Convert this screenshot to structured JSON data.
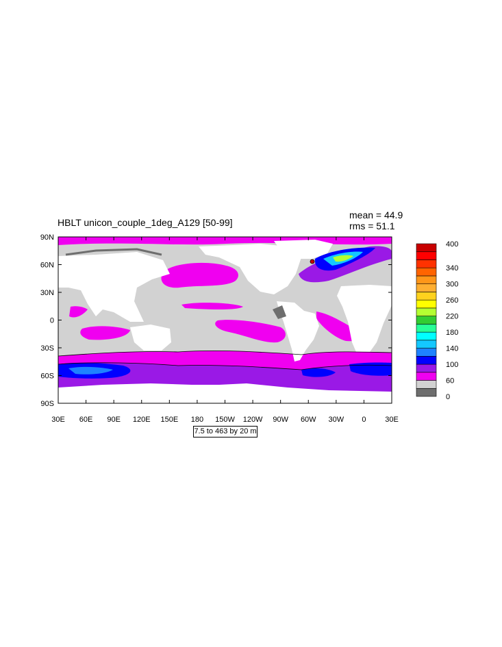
{
  "title": "HBLT unicon_couple_1deg_A129 [50-99]",
  "stats": {
    "mean": "mean = 44.9",
    "rms": "rms = 51.1"
  },
  "contour_info": "7.5 to 463 by 20 m",
  "lat_labels": [
    "90N",
    "60N",
    "30N",
    "0",
    "30S",
    "60S",
    "90S"
  ],
  "lon_labels": [
    "30E",
    "60E",
    "90E",
    "120E",
    "150E",
    "180",
    "150W",
    "120W",
    "90W",
    "60W",
    "30W",
    "0",
    "30E"
  ],
  "colorbar": {
    "colors": [
      "#6e6e6e",
      "#d2d2d2",
      "#f000f0",
      "#9a19e6",
      "#0000ff",
      "#1e82ff",
      "#14c8ff",
      "#00ffff",
      "#28ff96",
      "#32cd32",
      "#b4ff32",
      "#ffff00",
      "#ffd21e",
      "#ffaf32",
      "#ff9619",
      "#ff6400",
      "#ff3200",
      "#ff0000",
      "#c80000"
    ],
    "labels": [
      {
        "text": "400",
        "index": 18
      },
      {
        "text": "340",
        "index": 15
      },
      {
        "text": "300",
        "index": 13
      },
      {
        "text": "260",
        "index": 11
      },
      {
        "text": "220",
        "index": 9
      },
      {
        "text": "180",
        "index": 7
      },
      {
        "text": "140",
        "index": 5
      },
      {
        "text": "100",
        "index": 3
      },
      {
        "text": "60",
        "index": 1
      },
      {
        "text": "0",
        "index": -1
      }
    ]
  },
  "colors": {
    "land": "#ffffff",
    "ocean_low": "#d2d2d2",
    "ocean_mid": "#f000f0",
    "ocean_high": "#9a19e6",
    "deep": "#0000ff"
  }
}
